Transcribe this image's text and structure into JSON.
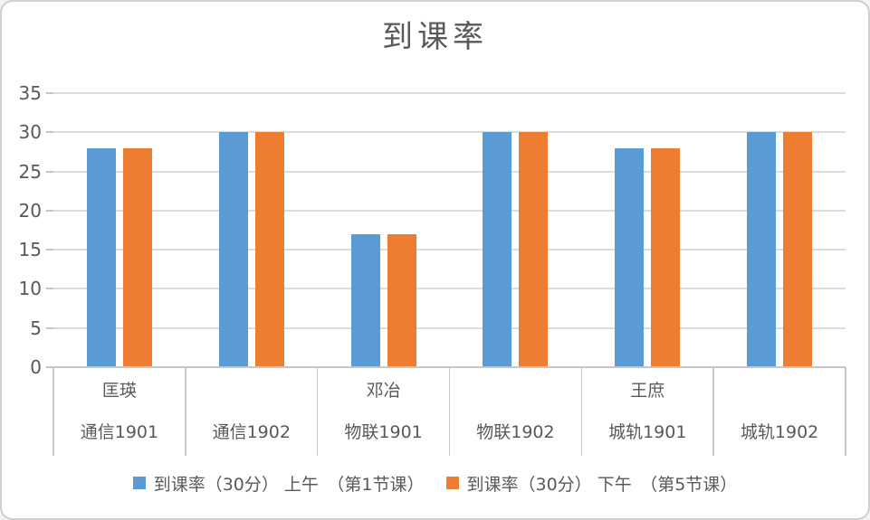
{
  "chart_data": {
    "type": "bar",
    "title": "到课率",
    "categories": [
      "通信1901",
      "通信1902",
      "物联1901",
      "物联1902",
      "城轨1901",
      "城轨1902"
    ],
    "group_labels": [
      "匡瑛",
      "",
      "邓冶",
      "",
      "王庶",
      ""
    ],
    "series": [
      {
        "name": "到课率（30分） 上午　（第1节课）",
        "color": "#5B9BD5",
        "values": [
          28,
          30,
          17,
          30,
          28,
          30
        ]
      },
      {
        "name": "到课率（30分） 下午　（第5节课）",
        "color": "#ED7D31",
        "values": [
          28,
          30,
          17,
          30,
          28,
          30
        ]
      }
    ],
    "xlabel": "",
    "ylabel": "",
    "ylim": [
      0,
      35
    ],
    "ytick_step": 5,
    "yticks": [
      0,
      5,
      10,
      15,
      20,
      25,
      30,
      35
    ],
    "grid": true,
    "legend_position": "bottom"
  },
  "colors": {
    "text": "#595959",
    "gridline": "#DCDCDC",
    "axis": "#C6C6C6",
    "border": "#CFCFCF",
    "background": "#FFFFFF",
    "series_blue": "#5B9BD5",
    "series_orange": "#ED7D31"
  }
}
